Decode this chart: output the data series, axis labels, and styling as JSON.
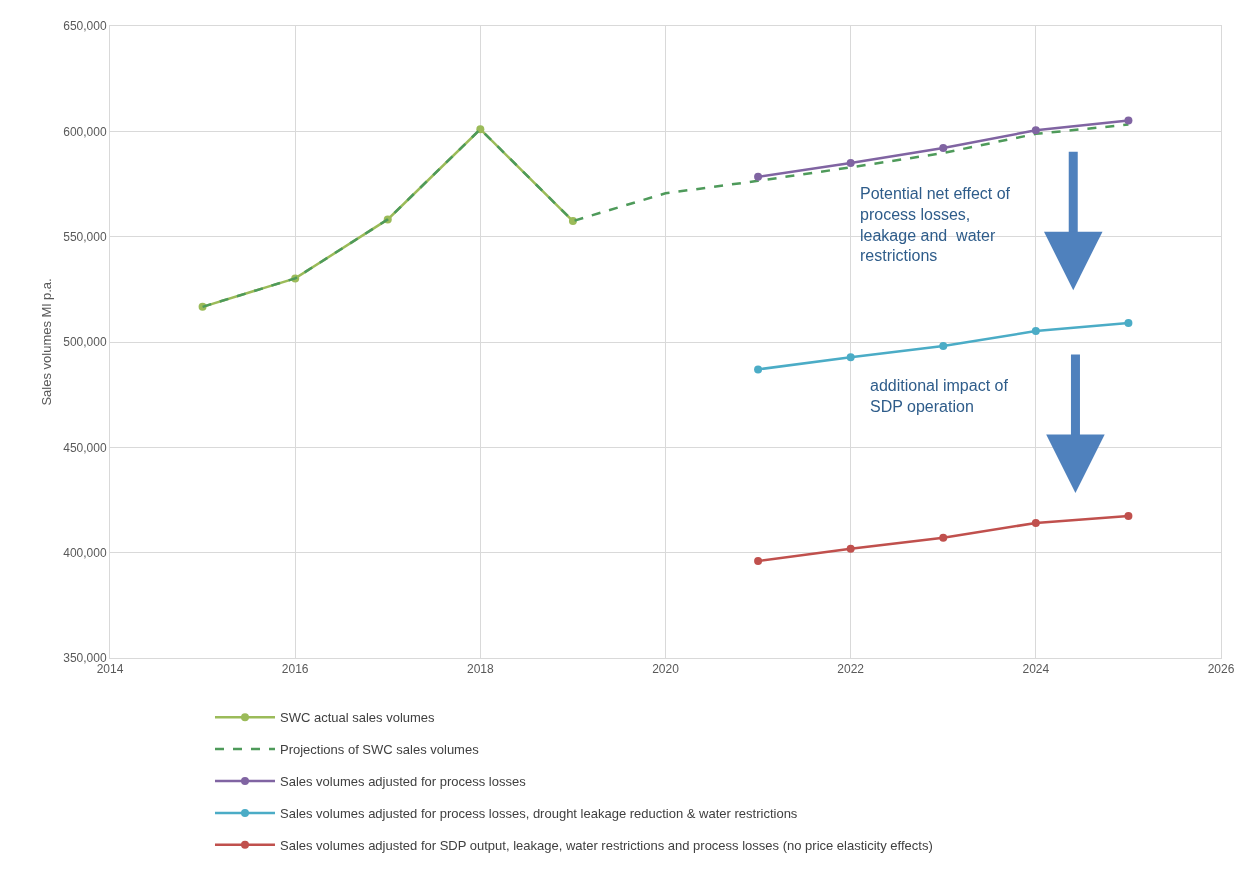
{
  "chart_data": {
    "type": "line",
    "ylabel": "Sales volumes Ml p.a.",
    "x": [
      2015,
      2016,
      2017,
      2018,
      2019,
      2020,
      2021,
      2022,
      2023,
      2024,
      2025
    ],
    "series": [
      {
        "name": "SWC actual sales volumes",
        "color": "#9bbb59",
        "marker": "circle",
        "line_style": "solid",
        "x": [
          2015,
          2016,
          2017,
          2018,
          2019
        ],
        "values": [
          516700,
          530200,
          558200,
          601000,
          557400
        ]
      },
      {
        "name": "Projections of SWC sales volumes",
        "color": "#4e9a5a",
        "marker": "none",
        "line_style": "dashed",
        "values": [
          516700,
          530200,
          558200,
          601000,
          557400,
          570600,
          576500,
          582900,
          589700,
          598800,
          603200
        ]
      },
      {
        "name": "Sales volumes adjusted for process losses",
        "color": "#8064a2",
        "marker": "circle",
        "line_style": "solid",
        "x": [
          2021,
          2022,
          2023,
          2024,
          2025
        ],
        "values": [
          578400,
          585000,
          592100,
          600500,
          605100
        ]
      },
      {
        "name": "Sales volumes adjusted for process losses, drought leakage reduction & water restrictions",
        "color": "#4bacc6",
        "marker": "circle",
        "line_style": "solid",
        "x": [
          2021,
          2022,
          2023,
          2024,
          2025
        ],
        "values": [
          487000,
          492800,
          498100,
          505200,
          509000
        ]
      },
      {
        "name": "Sales volumes adjusted for SDP output, leakage, water restrictions and process losses (no price elasticity effects)",
        "color": "#c0504d",
        "marker": "circle",
        "line_style": "solid",
        "x": [
          2021,
          2022,
          2023,
          2024,
          2025
        ],
        "values": [
          396000,
          401900,
          407100,
          414100,
          417400
        ]
      }
    ],
    "annotations": [
      "Potential net effect of\nprocess losses,\nleakage and  water\nrestrictions",
      "additional impact of\nSDP operation"
    ],
    "xlim": [
      2014,
      2026
    ],
    "xticks": [
      2014,
      2016,
      2018,
      2020,
      2022,
      2024,
      2026
    ],
    "ylim": [
      350000,
      650000
    ],
    "yticks": [
      {
        "value": 350000,
        "label": "350,000"
      },
      {
        "value": 400000,
        "label": "400,000"
      },
      {
        "value": 450000,
        "label": "450,000"
      },
      {
        "value": 500000,
        "label": "500,000"
      },
      {
        "value": 550000,
        "label": "550,000"
      },
      {
        "value": 600000,
        "label": "600,000"
      },
      {
        "value": 650000,
        "label": "650,000"
      }
    ],
    "grid": true,
    "legend": "bottom"
  }
}
